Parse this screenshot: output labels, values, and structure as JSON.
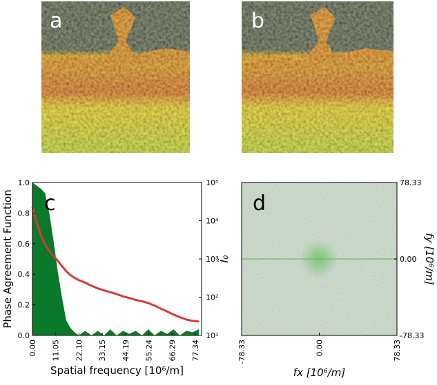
{
  "panels": [
    "a",
    "b"
  ],
  "chart_data": [
    {
      "type": "area_line",
      "label": "c",
      "xlabel": "Spatial frequency [10⁶/m]",
      "ylabel": "Phase Agreement Function",
      "y2label": "Ĩ₀",
      "x": [
        0,
        2,
        4,
        6,
        8,
        10,
        12,
        14,
        16,
        18,
        20,
        22,
        25,
        28,
        31,
        34,
        37,
        40,
        43,
        46,
        49,
        52,
        55,
        58,
        61,
        64,
        67,
        70,
        73,
        76,
        79
      ],
      "series": [
        {
          "color": "#0a7a2a",
          "values": [
            1.0,
            0.98,
            0.96,
            0.93,
            0.8,
            0.62,
            0.42,
            0.25,
            0.1,
            0.05,
            0.02,
            0,
            0.03,
            0,
            0.03,
            0,
            0.04,
            0,
            0.03,
            0.01,
            0.03,
            0,
            0.04,
            0,
            0.03,
            0.01,
            0.04,
            0,
            0.03,
            0.02,
            0.04
          ]
        },
        {
          "color": "#d43a3a",
          "axis": "y2",
          "values": [
            23000,
            9000,
            4200,
            2400,
            1600,
            1200,
            900,
            650,
            480,
            380,
            320,
            280,
            240,
            200,
            170,
            150,
            135,
            120,
            105,
            95,
            85,
            78,
            70,
            60,
            50,
            42,
            35,
            30,
            26,
            24,
            23
          ]
        }
      ],
      "xlim": [
        0,
        80.3
      ],
      "xticks": [
        {
          "value": 0,
          "label": "0.00"
        },
        11.05,
        {
          "value": 22.1,
          "label": "22.10"
        },
        33.15,
        44.19,
        55.24,
        66.29,
        77.34
      ],
      "ylim": [
        0,
        1
      ],
      "yticks": [
        {
          "value": 0,
          "label": "0.0"
        },
        0.2,
        0.4,
        0.6,
        0.8,
        {
          "value": 1,
          "label": "1.0"
        }
      ],
      "y2log": true,
      "y2lim": [
        10,
        100000
      ],
      "y2ticks": [
        {
          "value": 10,
          "label": "10¹"
        },
        {
          "value": 100,
          "label": "10²"
        },
        {
          "value": 1000,
          "label": "10³"
        },
        {
          "value": 10000,
          "label": "10⁴"
        },
        {
          "value": 100000,
          "label": "10⁵"
        }
      ]
    },
    {
      "type": "image",
      "label": "d",
      "xlabel": "fx [10⁶/m]",
      "ylabel": "fy [10⁶/m]",
      "xlim": [
        -78.33,
        78.33
      ],
      "xticks": [
        -78.33,
        {
          "value": 0,
          "label": "0.00"
        },
        78.33
      ],
      "ylim": [
        -78.33,
        78.33
      ],
      "yticks": [
        -78.33,
        {
          "value": 0,
          "label": "0.00"
        },
        78.33
      ]
    }
  ]
}
